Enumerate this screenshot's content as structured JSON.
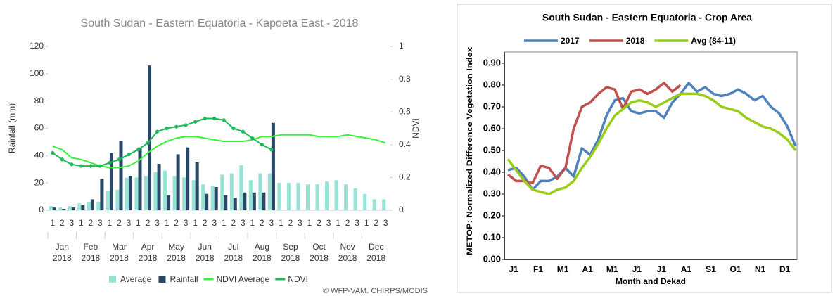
{
  "chart_data": [
    {
      "type": "combo",
      "title": "South Sudan - Eastern Equatoria - Kapoeta East - 2018",
      "y_label": "Rainfall (mm)",
      "y2_label": "NDVI",
      "credit": "© WFP-VAM. CHIRPS/MODIS",
      "categories": [
        "1",
        "2",
        "3",
        "1",
        "2",
        "3",
        "1",
        "2",
        "3",
        "1",
        "2",
        "3",
        "1",
        "2",
        "3",
        "1",
        "2",
        "3",
        "1",
        "2",
        "3",
        "1",
        "2",
        "3",
        "1",
        "2",
        "3",
        "1",
        "2",
        "3",
        "1",
        "2",
        "3",
        "1",
        "2",
        "3"
      ],
      "groups": [
        [
          "Jan",
          "2018"
        ],
        [
          "Feb",
          "2018"
        ],
        [
          "Mar",
          "2018"
        ],
        [
          "Apr",
          "2018"
        ],
        [
          "May",
          "2018"
        ],
        [
          "Jun",
          "2018"
        ],
        [
          "Jul",
          "2018"
        ],
        [
          "Aug",
          "2018"
        ],
        [
          "Sep",
          "2018"
        ],
        [
          "Oct",
          "2018"
        ],
        [
          "Nov",
          "2018"
        ],
        [
          "Dec",
          "2018"
        ]
      ],
      "ylim": [
        0,
        120
      ],
      "yticks": [
        0,
        20,
        40,
        60,
        80,
        100,
        120
      ],
      "y2lim": [
        0,
        1
      ],
      "y2ticks": [
        0,
        0.2,
        0.4,
        0.6,
        0.8,
        1
      ],
      "series": [
        {
          "name": "Average",
          "type": "bar",
          "color": "#96e3d6",
          "values": [
            3,
            2,
            3,
            5,
            6,
            6,
            14,
            15,
            24,
            24,
            25,
            28,
            29,
            25,
            24,
            22,
            19,
            18,
            26,
            27,
            33,
            22,
            27,
            27,
            20,
            20,
            20,
            19,
            19,
            21,
            22,
            19,
            16,
            12,
            8,
            8
          ]
        },
        {
          "name": "Rainfall",
          "type": "bar",
          "color": "#2b4766",
          "values": [
            2,
            1,
            2,
            4,
            8,
            23,
            42,
            51,
            25,
            46,
            106,
            34,
            11,
            41,
            46,
            35,
            12,
            17,
            11,
            9,
            13,
            13,
            13,
            64,
            null,
            null,
            null,
            null,
            null,
            null,
            null,
            null,
            null,
            null,
            null,
            null
          ]
        },
        {
          "name": "NDVI Average",
          "type": "line",
          "axis": "y2",
          "color": "#3af03a",
          "marker": false,
          "values": [
            0.39,
            0.37,
            0.32,
            0.31,
            0.29,
            0.27,
            0.26,
            0.26,
            0.27,
            0.3,
            0.35,
            0.39,
            0.42,
            0.44,
            0.45,
            0.45,
            0.44,
            0.43,
            0.42,
            0.42,
            0.42,
            0.43,
            0.45,
            0.45,
            0.46,
            0.46,
            0.46,
            0.46,
            0.45,
            0.45,
            0.45,
            0.46,
            0.45,
            0.44,
            0.43,
            0.41
          ]
        },
        {
          "name": "NDVI",
          "type": "line",
          "axis": "y2",
          "color": "#1fb85a",
          "marker": true,
          "values": [
            0.35,
            0.31,
            0.28,
            0.27,
            0.27,
            0.27,
            0.29,
            0.31,
            0.34,
            0.37,
            0.41,
            0.48,
            0.5,
            0.51,
            0.52,
            0.54,
            0.56,
            0.56,
            0.55,
            0.5,
            0.48,
            0.44,
            0.4,
            0.37,
            null,
            null,
            null,
            null,
            null,
            null,
            null,
            null,
            null,
            null,
            null,
            null
          ]
        }
      ]
    },
    {
      "type": "line",
      "title": "South Sudan - Eastern Equatoria - Crop Area",
      "x_label": "Month and Dekad",
      "y_label": "METOP: Normalized Difference Vegetation Index",
      "categories": [
        "J1",
        null,
        null,
        "F1",
        null,
        null,
        "M1",
        null,
        null,
        "A1",
        null,
        null,
        "M1",
        null,
        null,
        "J1",
        null,
        null,
        "J1",
        null,
        null,
        "A1",
        null,
        null,
        "S1",
        null,
        null,
        "O1",
        null,
        null,
        "N1",
        null,
        null,
        "D1",
        null,
        null
      ],
      "ylim": [
        0,
        0.9
      ],
      "yticks": [
        {
          "value": 0,
          "label": "0.00"
        },
        {
          "value": 0.1,
          "label": "0.10"
        },
        {
          "value": 0.2,
          "label": "0.20"
        },
        {
          "value": 0.3,
          "label": "0.30"
        },
        {
          "value": 0.4,
          "label": "0.40"
        },
        {
          "value": 0.5,
          "label": "0.50"
        },
        {
          "value": 0.6,
          "label": "0.60"
        },
        {
          "value": 0.7,
          "label": "0.70"
        },
        {
          "value": 0.8,
          "label": "0.80"
        },
        {
          "value": 0.9,
          "label": "0.90"
        }
      ],
      "series": [
        {
          "name": "2017",
          "color": "#4f81bd",
          "values": [
            0.41,
            0.42,
            0.38,
            0.32,
            0.36,
            0.36,
            0.38,
            0.42,
            0.38,
            0.51,
            0.48,
            0.55,
            0.66,
            0.73,
            0.74,
            0.68,
            0.67,
            0.68,
            0.68,
            0.65,
            0.72,
            0.76,
            0.81,
            0.77,
            0.79,
            0.76,
            0.75,
            0.76,
            0.78,
            0.76,
            0.73,
            0.75,
            0.7,
            0.67,
            0.61,
            0.52
          ]
        },
        {
          "name": "2018",
          "color": "#c0504d",
          "values": [
            0.39,
            0.36,
            0.36,
            0.35,
            0.43,
            0.42,
            0.37,
            0.42,
            0.6,
            0.7,
            0.72,
            0.76,
            0.79,
            0.78,
            0.69,
            0.77,
            0.78,
            0.76,
            0.78,
            0.81,
            0.77,
            0.8,
            null,
            null,
            null,
            null,
            null,
            null,
            null,
            null,
            null,
            null,
            null,
            null,
            null,
            null
          ]
        },
        {
          "name": "Avg (84-11)",
          "color": "#9acd1a",
          "values": [
            0.46,
            0.41,
            0.36,
            0.32,
            0.31,
            0.3,
            0.32,
            0.33,
            0.36,
            0.42,
            0.47,
            0.53,
            0.6,
            0.66,
            0.69,
            0.72,
            0.73,
            0.72,
            0.7,
            0.72,
            0.74,
            0.76,
            0.76,
            0.76,
            0.75,
            0.73,
            0.7,
            0.69,
            0.68,
            0.65,
            0.63,
            0.61,
            0.6,
            0.58,
            0.55,
            0.5
          ]
        }
      ]
    }
  ]
}
